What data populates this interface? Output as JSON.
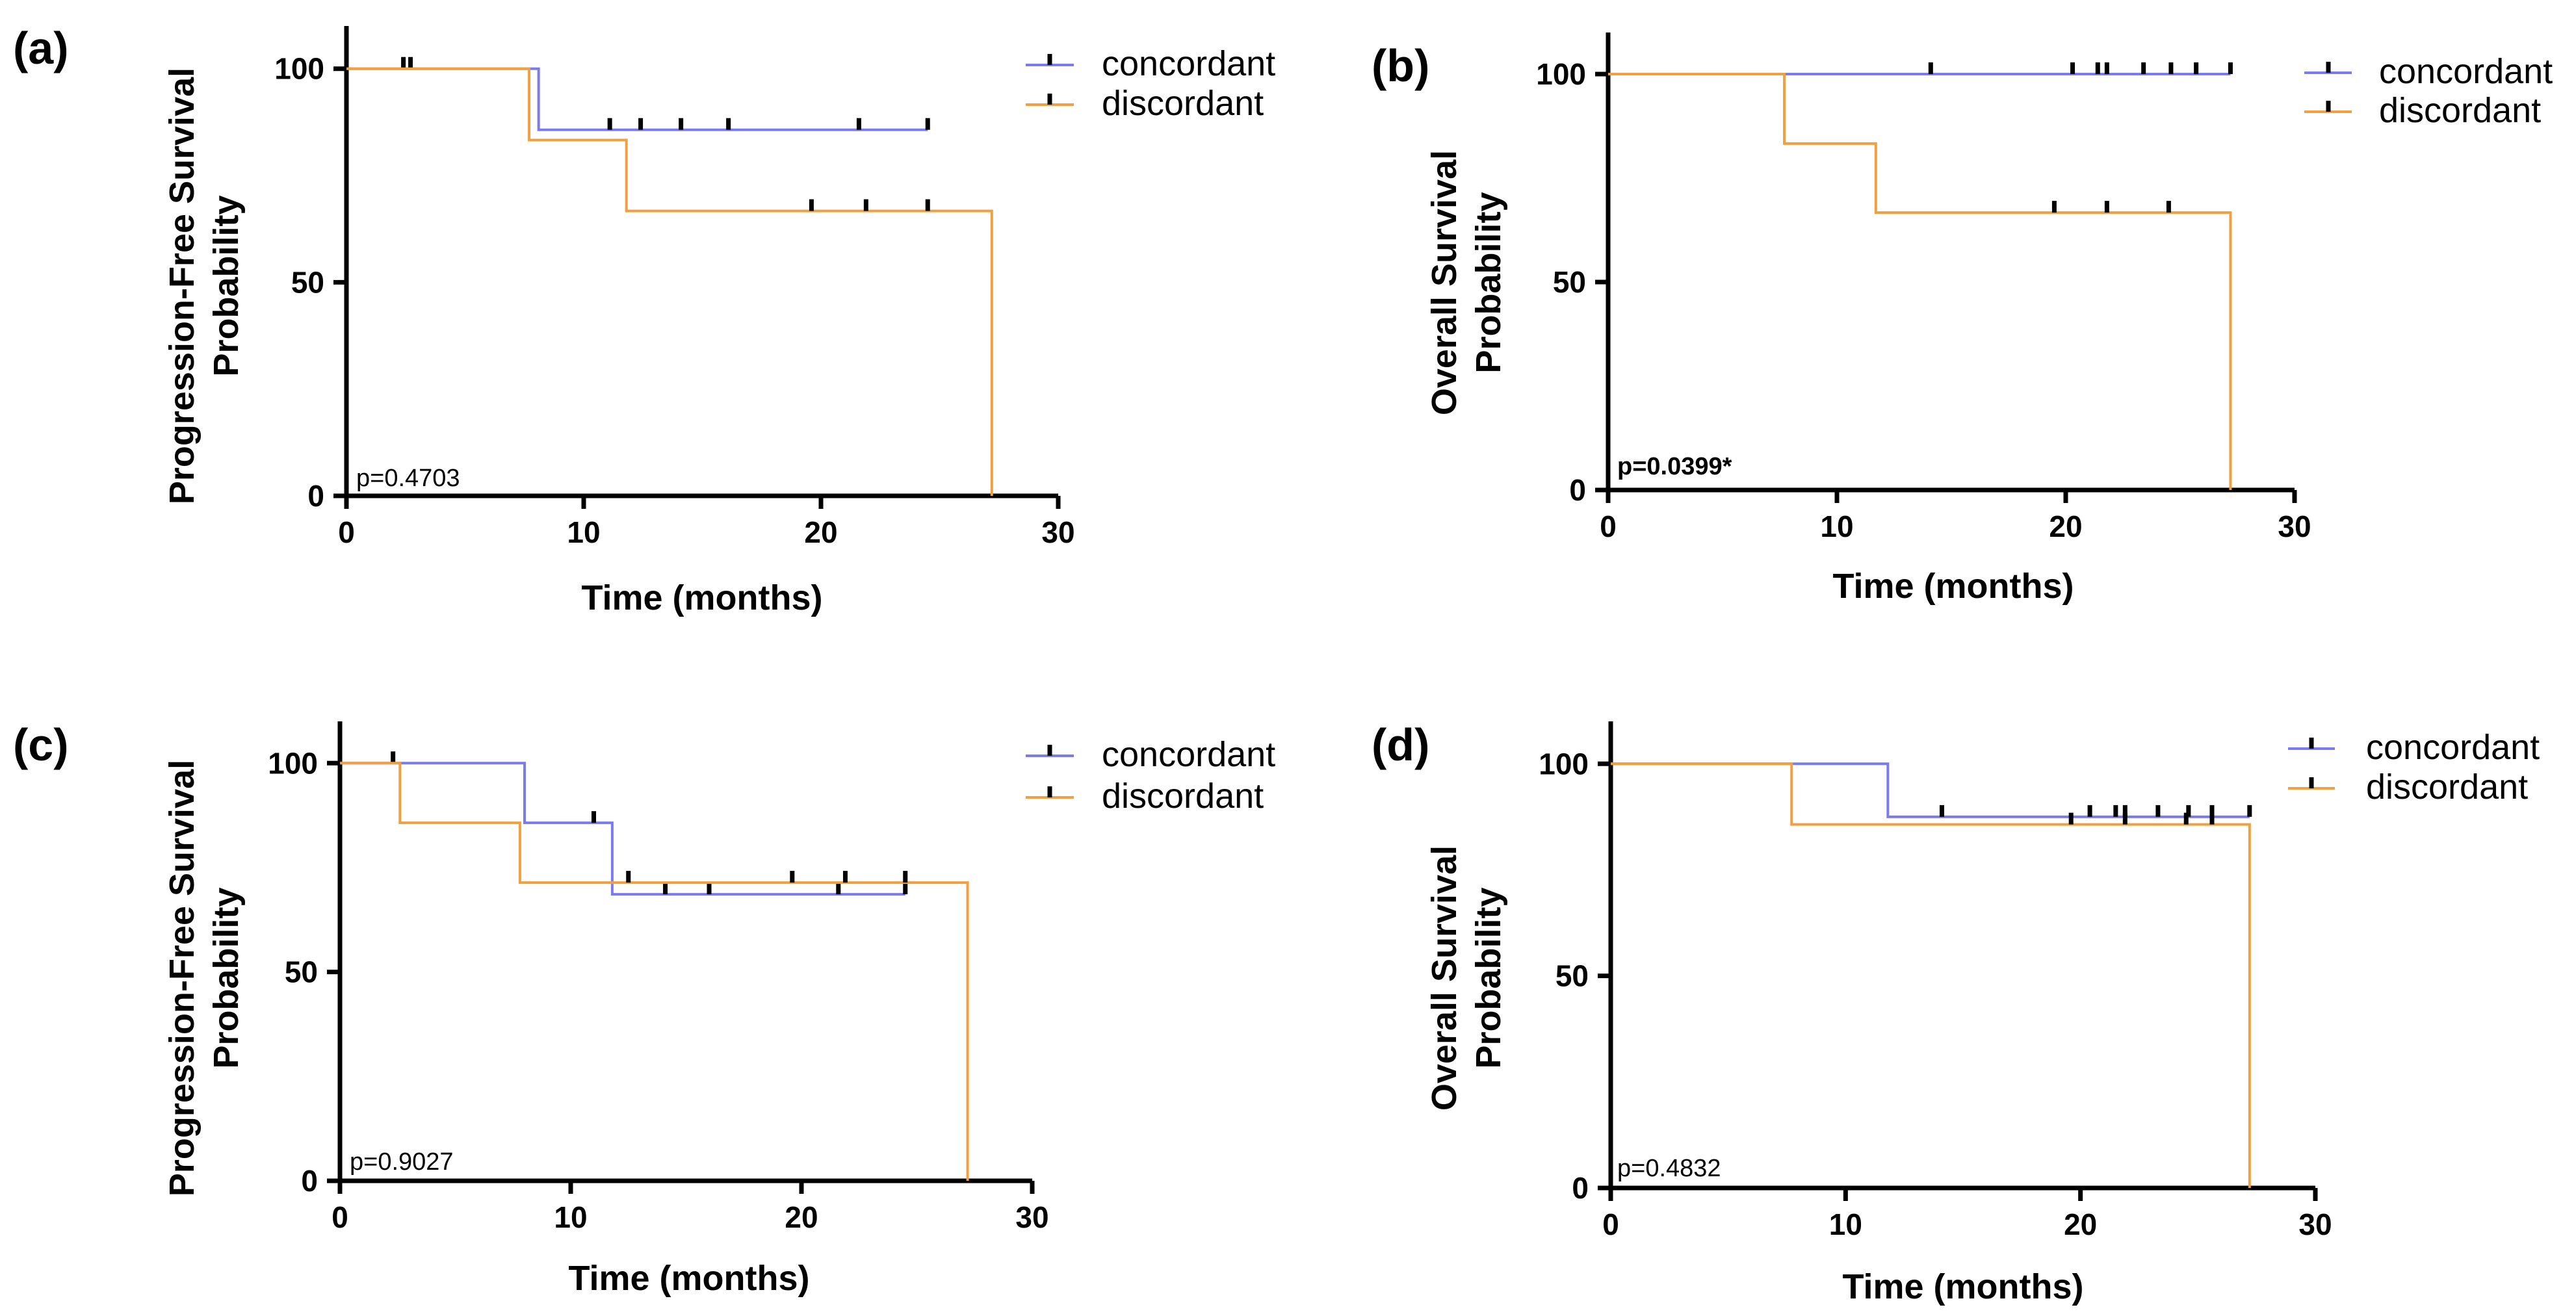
{
  "colors": {
    "concordant": "#7b7bf0",
    "discordant": "#f0a040",
    "axis": "#000000",
    "censor": "#000000"
  },
  "chart_data": [
    {
      "type": "line",
      "subtype": "kaplan-meier",
      "panel_label": "(a)",
      "xlabel": "Time (months)",
      "ylabel_lines": [
        "Progression-Free Survival",
        "Probability"
      ],
      "xlim": [
        0,
        30
      ],
      "ylim": [
        0,
        110
      ],
      "xticks": [
        0,
        10,
        20,
        30
      ],
      "yticks": [
        0,
        50,
        100
      ],
      "pvalue": "p=0.4703",
      "pvalue_bold": false,
      "series": [
        {
          "name": "concordant",
          "color": "#7b7bf0",
          "steps": [
            [
              0,
              100
            ],
            [
              8.1,
              85.7
            ],
            [
              24.5,
              85.7
            ]
          ],
          "censors": [
            [
              2.4,
              100
            ],
            [
              2.7,
              100
            ],
            [
              11.1,
              85.7
            ],
            [
              12.4,
              85.7
            ],
            [
              14.1,
              85.7
            ],
            [
              16.1,
              85.7
            ],
            [
              21.6,
              85.7
            ],
            [
              24.5,
              85.7
            ]
          ]
        },
        {
          "name": "discordant",
          "color": "#f0a040",
          "steps": [
            [
              0,
              100
            ],
            [
              7.7,
              83.3
            ],
            [
              11.8,
              66.7
            ],
            [
              27.2,
              0
            ]
          ],
          "censors": [
            [
              19.6,
              66.7
            ],
            [
              21.9,
              66.7
            ],
            [
              24.5,
              66.7
            ]
          ]
        }
      ]
    },
    {
      "type": "line",
      "subtype": "kaplan-meier",
      "panel_label": "(b)",
      "xlabel": "Time (months)",
      "ylabel_lines": [
        "Overall Survival",
        "Probability"
      ],
      "xlim": [
        0,
        30
      ],
      "ylim": [
        0,
        110
      ],
      "xticks": [
        0,
        10,
        20,
        30
      ],
      "yticks": [
        0,
        50,
        100
      ],
      "pvalue": "p=0.0399*",
      "pvalue_bold": true,
      "series": [
        {
          "name": "concordant",
          "color": "#7b7bf0",
          "steps": [
            [
              0,
              100
            ],
            [
              27.2,
              100
            ]
          ],
          "censors": [
            [
              14.1,
              100
            ],
            [
              20.3,
              100
            ],
            [
              21.4,
              100
            ],
            [
              21.8,
              100
            ],
            [
              23.4,
              100
            ],
            [
              24.6,
              100
            ],
            [
              25.7,
              100
            ],
            [
              27.2,
              100
            ]
          ]
        },
        {
          "name": "discordant",
          "color": "#f0a040",
          "steps": [
            [
              0,
              100
            ],
            [
              7.7,
              83.3
            ],
            [
              11.7,
              66.7
            ],
            [
              27.2,
              0
            ]
          ],
          "censors": [
            [
              19.5,
              66.7
            ],
            [
              21.8,
              66.7
            ],
            [
              24.5,
              66.7
            ]
          ]
        }
      ]
    },
    {
      "type": "line",
      "subtype": "kaplan-meier",
      "panel_label": "(c)",
      "xlabel": "Time (months)",
      "ylabel_lines": [
        "Progression-Free Survival",
        "Probability"
      ],
      "xlim": [
        0,
        30
      ],
      "ylim": [
        0,
        110
      ],
      "xticks": [
        0,
        10,
        20,
        30
      ],
      "yticks": [
        0,
        50,
        100
      ],
      "pvalue": "p=0.9027",
      "pvalue_bold": false,
      "series": [
        {
          "name": "concordant",
          "color": "#7b7bf0",
          "steps": [
            [
              0,
              100
            ],
            [
              8.0,
              85.7
            ],
            [
              11.8,
              68.6
            ],
            [
              24.5,
              68.6
            ]
          ],
          "censors": [
            [
              2.3,
              100
            ],
            [
              11.0,
              85.7
            ],
            [
              14.1,
              68.6
            ],
            [
              16.0,
              68.6
            ],
            [
              21.6,
              68.6
            ],
            [
              24.5,
              68.6
            ]
          ]
        },
        {
          "name": "discordant",
          "color": "#f0a040",
          "steps": [
            [
              0,
              100
            ],
            [
              2.6,
              85.7
            ],
            [
              7.8,
              71.4
            ],
            [
              27.2,
              0
            ]
          ],
          "censors": [
            [
              12.5,
              71.4
            ],
            [
              19.6,
              71.4
            ],
            [
              21.9,
              71.4
            ],
            [
              24.5,
              71.4
            ]
          ]
        }
      ]
    },
    {
      "type": "line",
      "subtype": "kaplan-meier",
      "panel_label": "(d)",
      "xlabel": "Time (months)",
      "ylabel_lines": [
        "Overall Survival",
        "Probability"
      ],
      "xlim": [
        0,
        30
      ],
      "ylim": [
        0,
        110
      ],
      "xticks": [
        0,
        10,
        20,
        30
      ],
      "yticks": [
        0,
        50,
        100
      ],
      "pvalue": "p=0.4832",
      "pvalue_bold": false,
      "series": [
        {
          "name": "concordant",
          "color": "#7b7bf0",
          "steps": [
            [
              0,
              100
            ],
            [
              11.8,
              87.5
            ],
            [
              27.2,
              87.5
            ]
          ],
          "censors": [
            [
              14.1,
              87.5
            ],
            [
              20.4,
              87.5
            ],
            [
              21.5,
              87.5
            ],
            [
              21.9,
              87.5
            ],
            [
              23.3,
              87.5
            ],
            [
              24.6,
              87.5
            ],
            [
              25.6,
              87.5
            ],
            [
              27.2,
              87.5
            ]
          ]
        },
        {
          "name": "discordant",
          "color": "#f0a040",
          "steps": [
            [
              0,
              100
            ],
            [
              7.7,
              85.7
            ],
            [
              27.2,
              0
            ]
          ],
          "censors": [
            [
              19.6,
              85.7
            ],
            [
              21.9,
              85.7
            ],
            [
              24.5,
              85.7
            ],
            [
              25.6,
              85.7
            ]
          ]
        }
      ]
    }
  ]
}
